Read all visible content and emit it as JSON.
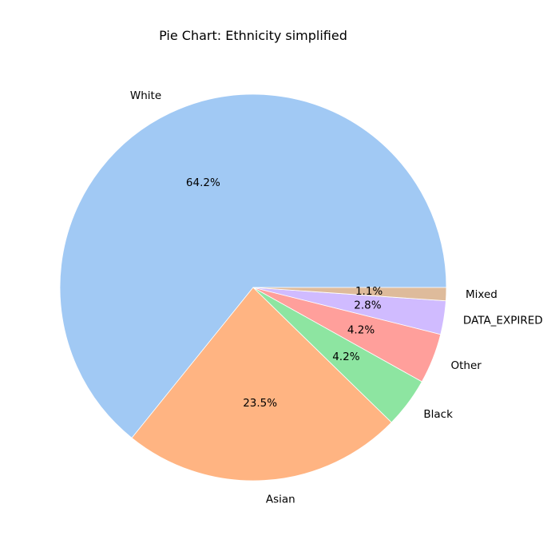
{
  "chart_data": {
    "type": "pie",
    "title": "Pie Chart: Ethnicity simplified",
    "categories": [
      "White",
      "Asian",
      "Black",
      "Other",
      "DATA_EXPIRED",
      "Mixed"
    ],
    "values": [
      64.2,
      23.5,
      4.2,
      4.2,
      2.8,
      1.1
    ],
    "value_labels": [
      "64.2%",
      "23.5%",
      "4.2%",
      "4.2%",
      "2.8%",
      "1.1%"
    ],
    "colors": [
      "#a1c9f4",
      "#ffb482",
      "#8de5a1",
      "#ff9f9b",
      "#d0bbff",
      "#debb9b"
    ],
    "start_angle_deg": 0,
    "direction": "counterclockwise"
  }
}
